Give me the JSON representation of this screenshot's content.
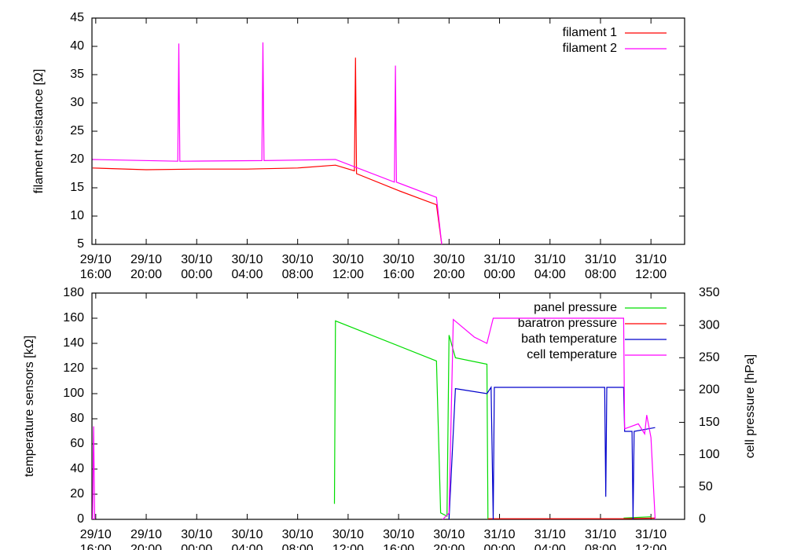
{
  "chart_data": [
    {
      "type": "line",
      "ylabel": "filament resistance [Ω]",
      "xlim": [
        "29/10 15:42",
        "31/10 14:40"
      ],
      "xticks": [
        "29/10 16:00",
        "29/10 20:00",
        "30/10 00:00",
        "30/10 04:00",
        "30/10 08:00",
        "30/10 12:00",
        "30/10 16:00",
        "30/10 20:00",
        "31/10 00:00",
        "31/10 04:00",
        "31/10 08:00",
        "31/10 12:00"
      ],
      "ylim": [
        5,
        45
      ],
      "yticks": [
        5,
        10,
        15,
        20,
        25,
        30,
        35,
        40,
        45
      ],
      "legend": "top-right",
      "series": [
        {
          "name": "filament 1",
          "color": "#ff0000",
          "x": [
            "29/10 15:45",
            "29/10 20:00",
            "30/10 00:00",
            "30/10 04:00",
            "30/10 08:00",
            "30/10 11:00",
            "30/10 12:30",
            "30/10 12:35",
            "30/10 12:40",
            "30/10 16:00",
            "30/10 19:00",
            "30/10 19:25"
          ],
          "values": [
            18.5,
            18.2,
            18.3,
            18.3,
            18.5,
            19,
            18,
            38,
            17.5,
            14.5,
            12,
            5
          ]
        },
        {
          "name": "filament 2",
          "color": "#ff00ff",
          "x": [
            "29/10 15:45",
            "29/10 22:30",
            "29/10 22:35",
            "29/10 22:40",
            "30/10 05:10",
            "30/10 05:15",
            "30/10 05:20",
            "30/10 11:00",
            "30/10 15:40",
            "30/10 15:45",
            "30/10 15:50",
            "30/10 19:00",
            "30/10 19:25"
          ],
          "values": [
            20,
            19.7,
            40.5,
            19.7,
            19.8,
            40.7,
            19.8,
            20,
            16,
            36.6,
            16,
            13.3,
            5
          ]
        }
      ]
    },
    {
      "type": "line",
      "ylabel": "temperature sensors [kΩ]",
      "y2label": "cell pressure [hPa]",
      "xlim": [
        "29/10 15:42",
        "31/10 14:40"
      ],
      "xticks": [
        "29/10 16:00",
        "29/10 20:00",
        "30/10 00:00",
        "30/10 04:00",
        "30/10 08:00",
        "30/10 12:00",
        "30/10 16:00",
        "30/10 20:00",
        "31/10 00:00",
        "31/10 04:00",
        "31/10 08:00",
        "31/10 12:00"
      ],
      "ylim": [
        0,
        180
      ],
      "yticks": [
        0,
        20,
        40,
        60,
        80,
        100,
        120,
        140,
        160,
        180
      ],
      "y2lim": [
        0,
        350
      ],
      "y2ticks": [
        0,
        50,
        100,
        150,
        200,
        250,
        300,
        350
      ],
      "legend": "top-right",
      "series": [
        {
          "name": "panel pressure",
          "color": "#00dd00",
          "axis": "y2",
          "x": [
            "30/10 10:55",
            "30/10 11:00",
            "30/10 19:00",
            "30/10 19:20",
            "30/10 19:50",
            "30/10 20:00",
            "30/10 20:30",
            "30/10 23:00",
            "30/10 23:05",
            "31/10 00:00",
            "31/10 09:50",
            "31/10 12:00"
          ],
          "values": [
            24,
            307,
            245,
            10,
            5,
            285,
            250,
            240,
            0,
            null,
            2,
            4
          ]
        },
        {
          "name": "baratron pressure",
          "color": "#ff0000",
          "axis": "y2",
          "x": [
            "30/10 23:05",
            "31/10 09:50",
            "31/10 12:20"
          ],
          "values": [
            1,
            1,
            2
          ]
        },
        {
          "name": "bath temperature",
          "color": "#0000cc",
          "x": [
            "30/10 20:00",
            "30/10 20:30",
            "30/10 23:00",
            "30/10 23:20",
            "30/10 23:30",
            "30/10 23:35",
            "30/10 23:40",
            "31/10 08:20",
            "31/10 08:25",
            "31/10 08:30",
            "31/10 09:50",
            "31/10 09:55",
            "31/10 10:30",
            "31/10 10:35",
            "31/10 10:40",
            "31/10 12:20"
          ],
          "values": [
            0,
            104,
            100,
            105,
            0,
            105,
            105,
            105,
            18,
            105,
            105,
            70,
            70,
            0,
            70,
            73
          ]
        },
        {
          "name": "cell temperature",
          "color": "#ff00ff",
          "x": [
            "29/10 15:45",
            "29/10 15:50",
            "29/10 15:55",
            "30/10 12:00",
            "30/10 19:30",
            "30/10 20:00",
            "30/10 20:20",
            "30/10 22:00",
            "30/10 23:00",
            "30/10 23:30",
            "31/10 09:50",
            "31/10 09:55",
            "31/10 11:00",
            "31/10 11:30",
            "31/10 11:40",
            "31/10 12:00",
            "31/10 12:20"
          ],
          "values": [
            0,
            74,
            0,
            null,
            0,
            5,
            159,
            145,
            140,
            160,
            160,
            72,
            76,
            68,
            83,
            65,
            0
          ]
        }
      ]
    }
  ]
}
